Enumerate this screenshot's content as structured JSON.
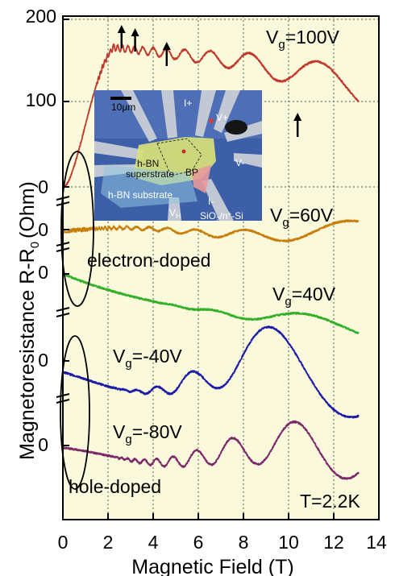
{
  "chart_data": {
    "type": "line",
    "xlabel": "Magnetic Field (T)",
    "ylabel": "Magnetoresistance R-R",
    "ylabel_sub": "0",
    "ylabel_unit": "(Ohm)",
    "x_ticks": [
      "0",
      "2",
      "4",
      "6",
      "8",
      "10",
      "12",
      "14"
    ],
    "y_ticks": [
      "200",
      "100",
      "0",
      "0",
      "0",
      "0",
      "0"
    ],
    "xlim": [
      0,
      14
    ],
    "grid": true,
    "temperature": "T=2.2K",
    "groups": [
      {
        "label": "electron-doped"
      },
      {
        "label": "hole-doped"
      }
    ],
    "series": [
      {
        "label_main": "V",
        "label_sub": "g",
        "label_value": "=100V",
        "color": "#c0392b",
        "offset": 0
      },
      {
        "label_main": "V",
        "label_sub": "g",
        "label_value": "=60V",
        "color": "#c87f0a",
        "offset": 0
      },
      {
        "label_main": "V",
        "label_sub": "g",
        "label_value": "=40V",
        "color": "#33b02a",
        "offset": 0
      },
      {
        "label_main": "V",
        "label_sub": "g",
        "label_value": "=-40V",
        "color": "#1c1ca8",
        "offset": 0
      },
      {
        "label_main": "V",
        "label_sub": "g",
        "label_value": "=-80V",
        "color": "#7a2868",
        "offset": 0
      }
    ],
    "arrows_B": [
      2.6,
      3.2,
      4.6,
      10.4
    ],
    "inset": {
      "scale": "10",
      "scale_unit": "μm",
      "labels": {
        "i_plus": "I+",
        "v_plus": "V+",
        "v_minus": "V-",
        "i_minus": "I-",
        "bp": "BP",
        "vh": "V",
        "vh_sub": "H",
        "hbn_super_1": "h-BN",
        "hbn_super_2": "superstrate",
        "hbn_sub": "h-BN substrate",
        "sio2_a": "SiO",
        "sio2_sub": "2",
        "sio2_b": "/n",
        "sio2_sup": "+",
        "sio2_c": "-Si"
      }
    }
  }
}
